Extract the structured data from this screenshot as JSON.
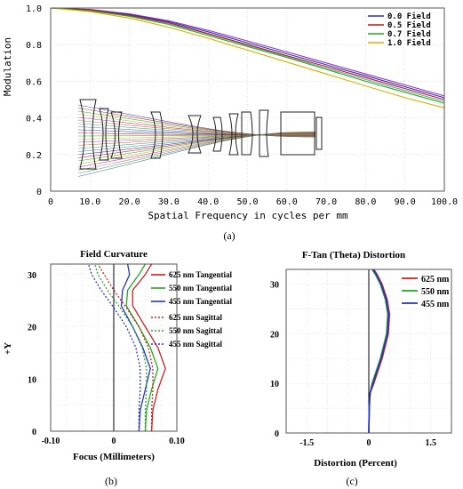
{
  "chart_data": [
    {
      "type": "line",
      "panel_label": "(a)",
      "xlabel": "Spatial Frequency in cycles per mm",
      "ylabel": "Modulation",
      "xlim": [
        0,
        100
      ],
      "ylim": [
        0,
        1
      ],
      "xticks": [
        "0",
        "10.0",
        "20.0",
        "30.0",
        "40.0",
        "50.0",
        "60.0",
        "70.0",
        "80.0",
        "90.0",
        "100.0"
      ],
      "yticks": [
        "0",
        "0.2",
        "0.4",
        "0.6",
        "0.8",
        "1.0"
      ],
      "grid": true,
      "legend_position": "top-right",
      "x": [
        0,
        10,
        20,
        30,
        40,
        50,
        60,
        70,
        80,
        90,
        100
      ],
      "series": [
        {
          "name": "0.0  Field",
          "color": "#2233cc",
          "values": [
            1.0,
            0.99,
            0.965,
            0.925,
            0.87,
            0.81,
            0.75,
            0.69,
            0.63,
            0.57,
            0.51
          ]
        },
        {
          "name": "0.5 Field",
          "color": "#cc1111",
          "values": [
            1.0,
            0.99,
            0.96,
            0.92,
            0.86,
            0.8,
            0.74,
            0.68,
            0.62,
            0.56,
            0.5
          ]
        },
        {
          "name": "0.7 Field",
          "color": "#22aa22",
          "values": [
            1.0,
            0.985,
            0.955,
            0.91,
            0.85,
            0.79,
            0.73,
            0.665,
            0.6,
            0.54,
            0.48
          ]
        },
        {
          "name": "1.0 Field",
          "color": "#d4b000",
          "values": [
            1.0,
            0.98,
            0.945,
            0.895,
            0.835,
            0.77,
            0.705,
            0.64,
            0.575,
            0.51,
            0.455
          ]
        }
      ],
      "extra_series": [
        {
          "color": "#9933cc",
          "values": [
            1.0,
            0.992,
            0.968,
            0.93,
            0.878,
            0.82,
            0.76,
            0.7,
            0.64,
            0.58,
            0.52
          ]
        },
        {
          "color": "#66aaaa",
          "values": [
            1.0,
            0.985,
            0.958,
            0.915,
            0.858,
            0.796,
            0.735,
            0.672,
            0.61,
            0.55,
            0.49
          ]
        }
      ]
    },
    {
      "type": "line",
      "title": "Field Curvature",
      "panel_label": "(b)",
      "xlabel": "Focus (Millimeters)",
      "ylabel": "+Y",
      "xlim": [
        -0.1,
        0.1
      ],
      "ylim": [
        0,
        32
      ],
      "xticks": [
        "-0.10",
        "0",
        "0.10"
      ],
      "yticks": [
        "0",
        "10",
        "20",
        "30"
      ],
      "grid": true,
      "legend_position": "top-right",
      "y": [
        0,
        4,
        8,
        12,
        16,
        20,
        24,
        27,
        30,
        32
      ],
      "series": [
        {
          "name": "625 nm Tangential",
          "color": "#cc2222",
          "style": "solid",
          "values": [
            0.06,
            0.062,
            0.07,
            0.082,
            0.07,
            0.05,
            0.03,
            0.03,
            0.05,
            0.06
          ]
        },
        {
          "name": "550 nm Tangential",
          "color": "#22aa22",
          "style": "solid",
          "values": [
            0.05,
            0.052,
            0.06,
            0.07,
            0.058,
            0.04,
            0.02,
            0.022,
            0.04,
            0.05
          ]
        },
        {
          "name": "455 nm Tangential",
          "color": "#2233cc",
          "style": "solid",
          "values": [
            0.04,
            0.042,
            0.05,
            0.058,
            0.046,
            0.03,
            0.012,
            0.014,
            0.025,
            0.022
          ]
        },
        {
          "name": "625 nm Sagittal",
          "color": "#cc2222",
          "style": "dotted",
          "values": [
            0.06,
            0.06,
            0.062,
            0.062,
            0.055,
            0.04,
            0.018,
            0.0,
            -0.015,
            -0.025
          ]
        },
        {
          "name": "550 nm Sagittal",
          "color": "#22aa22",
          "style": "dotted",
          "values": [
            0.05,
            0.05,
            0.052,
            0.052,
            0.045,
            0.03,
            0.008,
            -0.01,
            -0.025,
            -0.03
          ]
        },
        {
          "name": "455 nm Sagittal",
          "color": "#2233cc",
          "style": "dotted",
          "values": [
            0.04,
            0.04,
            0.042,
            0.042,
            0.035,
            0.02,
            -0.002,
            -0.02,
            -0.035,
            -0.04
          ]
        }
      ]
    },
    {
      "type": "line",
      "title": "F-Tan (Theta) Distortion",
      "panel_label": "(c)",
      "xlabel": "Distortion (Percent)",
      "xlim": [
        -2.0,
        2.0
      ],
      "ylim": [
        0,
        33
      ],
      "xticks": [
        "-1.5",
        "0",
        "1.5"
      ],
      "yticks": [
        "0",
        "10",
        "20",
        "30"
      ],
      "grid": true,
      "legend_position": "top-right",
      "y": [
        0,
        5,
        8,
        10,
        15,
        20,
        24,
        27,
        30,
        32,
        33
      ],
      "series": [
        {
          "name": "625 nm",
          "color": "#cc2222",
          "values": [
            0,
            0.01,
            0.03,
            0.1,
            0.3,
            0.45,
            0.48,
            0.42,
            0.3,
            0.18,
            0.1
          ]
        },
        {
          "name": "550 nm",
          "color": "#22aa22",
          "values": [
            0,
            0.01,
            0.03,
            0.1,
            0.3,
            0.45,
            0.48,
            0.42,
            0.3,
            0.18,
            0.1
          ]
        },
        {
          "name": "455 nm",
          "color": "#2233cc",
          "values": [
            0,
            0.01,
            0.03,
            0.1,
            0.3,
            0.45,
            0.48,
            0.42,
            0.3,
            0.18,
            0.1
          ]
        }
      ]
    }
  ]
}
